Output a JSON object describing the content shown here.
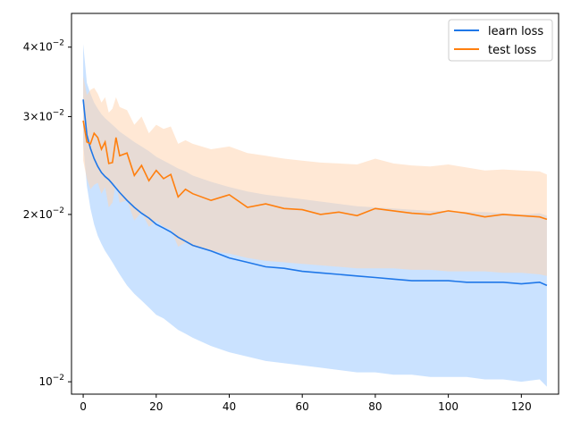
{
  "chart_data": {
    "type": "line",
    "title": "",
    "xlabel": "",
    "ylabel": "",
    "yscale": "log",
    "xlim": [
      -3.2,
      130.2
    ],
    "ylim": [
      0.0095,
      0.046
    ],
    "x_ticks": [
      0,
      20,
      40,
      60,
      80,
      100,
      120
    ],
    "y_ticks": [
      {
        "value": 0.01,
        "label": "10",
        "exp": "−2"
      },
      {
        "value": 0.02,
        "label": "2×10",
        "exp": "−2"
      },
      {
        "value": 0.03,
        "label": "3×10",
        "exp": "−2"
      },
      {
        "value": 0.04,
        "label": "4×10",
        "exp": "−2"
      }
    ],
    "legend_position": "top-right",
    "grid": false,
    "x": [
      0,
      1,
      2,
      3,
      4,
      5,
      6,
      7,
      8,
      9,
      10,
      12,
      14,
      16,
      18,
      20,
      22,
      24,
      26,
      28,
      30,
      35,
      40,
      45,
      50,
      55,
      60,
      65,
      70,
      75,
      80,
      85,
      90,
      95,
      100,
      105,
      110,
      115,
      120,
      125,
      127
    ],
    "series": [
      {
        "name": "learn loss",
        "color": "#1f77e8",
        "band_color": "#b3d6ff",
        "values": [
          0.0322,
          0.0278,
          0.0263,
          0.0252,
          0.0244,
          0.0238,
          0.0234,
          0.0231,
          0.0227,
          0.0223,
          0.0219,
          0.0212,
          0.0206,
          0.0201,
          0.0197,
          0.0192,
          0.0189,
          0.0186,
          0.0182,
          0.0179,
          0.0176,
          0.0172,
          0.0167,
          0.0164,
          0.0161,
          0.016,
          0.0158,
          0.0157,
          0.0156,
          0.0155,
          0.0154,
          0.0153,
          0.0152,
          0.0152,
          0.0152,
          0.0151,
          0.0151,
          0.0151,
          0.015,
          0.0151,
          0.0149
        ],
        "lower": [
          0.0268,
          0.0225,
          0.0205,
          0.0192,
          0.0183,
          0.0177,
          0.0172,
          0.0168,
          0.0164,
          0.016,
          0.0156,
          0.0149,
          0.0144,
          0.014,
          0.0136,
          0.0132,
          0.013,
          0.0127,
          0.0124,
          0.0122,
          0.012,
          0.0116,
          0.0113,
          0.0111,
          0.0109,
          0.0108,
          0.0107,
          0.0106,
          0.0105,
          0.0104,
          0.0104,
          0.0103,
          0.0103,
          0.0102,
          0.0102,
          0.0102,
          0.0101,
          0.0101,
          0.01,
          0.0101,
          0.0098
        ],
        "upper": [
          0.0405,
          0.0345,
          0.033,
          0.0318,
          0.031,
          0.0303,
          0.0298,
          0.0294,
          0.029,
          0.0286,
          0.0282,
          0.0276,
          0.027,
          0.0265,
          0.026,
          0.0254,
          0.025,
          0.0246,
          0.0242,
          0.0239,
          0.0235,
          0.0229,
          0.0224,
          0.022,
          0.0217,
          0.0215,
          0.0213,
          0.0211,
          0.0209,
          0.0207,
          0.0206,
          0.0205,
          0.0204,
          0.0203,
          0.0203,
          0.0202,
          0.0202,
          0.0201,
          0.02,
          0.0201,
          0.0199
        ]
      },
      {
        "name": "test loss",
        "color": "#ff7f0e",
        "band_color": "#ffd5b3",
        "values": [
          0.0295,
          0.027,
          0.0268,
          0.028,
          0.0275,
          0.0262,
          0.027,
          0.0247,
          0.0248,
          0.0275,
          0.0255,
          0.0258,
          0.0235,
          0.0245,
          0.023,
          0.024,
          0.0232,
          0.0236,
          0.0215,
          0.0222,
          0.0218,
          0.0212,
          0.0217,
          0.0206,
          0.0209,
          0.0205,
          0.0204,
          0.02,
          0.0202,
          0.0199,
          0.0205,
          0.0203,
          0.0201,
          0.02,
          0.0203,
          0.0201,
          0.0198,
          0.02,
          0.0199,
          0.0198,
          0.0196
        ],
        "lower": [
          0.025,
          0.0232,
          0.0222,
          0.0226,
          0.0228,
          0.0218,
          0.0224,
          0.0206,
          0.021,
          0.0228,
          0.021,
          0.0212,
          0.0195,
          0.0202,
          0.019,
          0.0195,
          0.019,
          0.0188,
          0.0175,
          0.0178,
          0.0175,
          0.0172,
          0.017,
          0.0167,
          0.0165,
          0.0164,
          0.0163,
          0.0162,
          0.0161,
          0.016,
          0.016,
          0.016,
          0.0159,
          0.0159,
          0.0158,
          0.0158,
          0.0158,
          0.0157,
          0.0157,
          0.0156,
          0.0155
        ],
        "upper": [
          0.0355,
          0.0328,
          0.0335,
          0.0338,
          0.033,
          0.0318,
          0.0325,
          0.0305,
          0.031,
          0.0325,
          0.0312,
          0.0308,
          0.029,
          0.03,
          0.028,
          0.029,
          0.0285,
          0.0288,
          0.0268,
          0.0272,
          0.0268,
          0.0262,
          0.0265,
          0.0258,
          0.0255,
          0.0252,
          0.025,
          0.0248,
          0.0247,
          0.0246,
          0.0252,
          0.0247,
          0.0245,
          0.0244,
          0.0246,
          0.0243,
          0.024,
          0.0241,
          0.024,
          0.0239,
          0.0236
        ]
      }
    ]
  }
}
